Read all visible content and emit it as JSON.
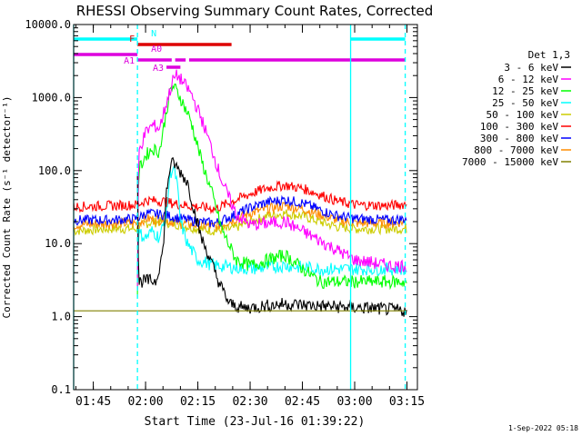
{
  "chart_data": {
    "type": "line",
    "title": "RHESSI Observing Summary Count Rates, Corrected",
    "xlabel": "Start Time (23-Jul-16 01:39:22)",
    "ylabel": "Corrected Count Rate (s⁻¹ detector⁻¹)",
    "footer": "1-Sep-2022 05:18",
    "y_scale": "log",
    "ylim": [
      0.1,
      10000
    ],
    "y_ticks": [
      0.1,
      1.0,
      10.0,
      100.0,
      1000.0,
      10000.0
    ],
    "y_tick_labels": [
      "0.1",
      "1.0",
      "10.0",
      "100.0",
      "1000.0",
      "10000.0"
    ],
    "xlim": [
      "01:39:22",
      "03:18:00"
    ],
    "x_ticks": [
      "01:45",
      "02:00",
      "02:15",
      "02:30",
      "02:45",
      "03:00",
      "03:15"
    ],
    "legend": {
      "title": "Det 1,3",
      "placement": "right",
      "entries": [
        "3 - 6 keV",
        "6 - 12 keV",
        "12 - 25 keV",
        "25 - 50 keV",
        "50 - 100 keV",
        "100 - 300 keV",
        "300 - 800 keV",
        "800 - 7000 keV",
        "7000 - 15000 keV"
      ]
    },
    "series": [
      {
        "name": "3 - 6 keV",
        "color": "#000000",
        "points": [
          [
            "01:57:40",
            100
          ],
          [
            "01:58:00",
            3.0
          ],
          [
            "02:00:00",
            3.1
          ],
          [
            "02:03:00",
            3.1
          ],
          [
            "02:05:00",
            8
          ],
          [
            "02:06:00",
            50
          ],
          [
            "02:07:00",
            110
          ],
          [
            "02:08:00",
            130
          ],
          [
            "02:09:00",
            110
          ],
          [
            "02:10:00",
            95
          ],
          [
            "02:12:00",
            70
          ],
          [
            "02:14:00",
            28
          ],
          [
            "02:16:00",
            12
          ],
          [
            "02:18:00",
            7
          ],
          [
            "02:21:00",
            3
          ],
          [
            "02:24:00",
            1.5
          ],
          [
            "02:28:00",
            1.3
          ],
          [
            "02:40:00",
            1.5
          ],
          [
            "02:50:00",
            1.4
          ],
          [
            "03:05:00",
            1.3
          ],
          [
            "03:15:00",
            1.2
          ]
        ]
      },
      {
        "name": "6 - 12 keV",
        "color": "#ff00ff",
        "points": [
          [
            "01:57:40",
            2
          ],
          [
            "01:58:00",
            180
          ],
          [
            "02:00:00",
            330
          ],
          [
            "02:02:00",
            420
          ],
          [
            "02:04:00",
            380
          ],
          [
            "02:06:00",
            850
          ],
          [
            "02:08:00",
            1800
          ],
          [
            "02:09:00",
            2000
          ],
          [
            "02:10:00",
            1800
          ],
          [
            "02:13:00",
            1150
          ],
          [
            "02:16:00",
            520
          ],
          [
            "02:19:00",
            200
          ],
          [
            "02:22:00",
            70
          ],
          [
            "02:26:00",
            25
          ],
          [
            "02:30:00",
            18
          ],
          [
            "02:40:00",
            20
          ],
          [
            "02:50:00",
            11
          ],
          [
            "03:00:00",
            6
          ],
          [
            "03:10:00",
            5
          ],
          [
            "03:15:00",
            5
          ]
        ]
      },
      {
        "name": "12 - 25 keV",
        "color": "#00ff00",
        "points": [
          [
            "01:57:40",
            2
          ],
          [
            "01:58:00",
            100
          ],
          [
            "02:00:00",
            160
          ],
          [
            "02:02:00",
            200
          ],
          [
            "02:04:00",
            180
          ],
          [
            "02:06:00",
            650
          ],
          [
            "02:07:00",
            1200
          ],
          [
            "02:08:00",
            1450
          ],
          [
            "02:10:00",
            1000
          ],
          [
            "02:13:00",
            480
          ],
          [
            "02:16:00",
            140
          ],
          [
            "02:19:00",
            50
          ],
          [
            "02:22:00",
            15
          ],
          [
            "02:26:00",
            6
          ],
          [
            "02:30:00",
            5
          ],
          [
            "02:40:00",
            7
          ],
          [
            "02:50:00",
            3
          ],
          [
            "03:00:00",
            3
          ],
          [
            "03:15:00",
            3
          ]
        ]
      },
      {
        "name": "25 - 50 keV",
        "color": "#00ffff",
        "points": [
          [
            "01:57:40",
            4
          ],
          [
            "01:58:00",
            14
          ],
          [
            "02:00:00",
            12
          ],
          [
            "02:02:00",
            15
          ],
          [
            "02:04:00",
            12
          ],
          [
            "02:06:00",
            25
          ],
          [
            "02:07:00",
            90
          ],
          [
            "02:08:00",
            110
          ],
          [
            "02:09:00",
            70
          ],
          [
            "02:10:00",
            20
          ],
          [
            "02:12:00",
            10
          ],
          [
            "02:15:00",
            6
          ],
          [
            "02:20:00",
            5
          ],
          [
            "02:30:00",
            4.5
          ],
          [
            "02:40:00",
            5
          ],
          [
            "02:50:00",
            4.5
          ],
          [
            "03:00:00",
            4.5
          ],
          [
            "03:15:00",
            4.5
          ]
        ]
      },
      {
        "name": "50 - 100 keV",
        "color": "#cccc00",
        "points": [
          [
            "01:39:22",
            15
          ],
          [
            "01:50:00",
            16
          ],
          [
            "01:57:40",
            16
          ],
          [
            "02:00:00",
            19
          ],
          [
            "02:05:00",
            20
          ],
          [
            "02:10:00",
            18
          ],
          [
            "02:15:00",
            16
          ],
          [
            "02:20:00",
            15
          ],
          [
            "02:25:00",
            16
          ],
          [
            "02:30:00",
            20
          ],
          [
            "02:35:00",
            24
          ],
          [
            "02:40:00",
            26
          ],
          [
            "02:45:00",
            24
          ],
          [
            "02:50:00",
            20
          ],
          [
            "02:55:00",
            17
          ],
          [
            "03:00:00",
            16
          ],
          [
            "03:10:00",
            16
          ],
          [
            "03:15:00",
            16
          ]
        ]
      },
      {
        "name": "100 - 300 keV",
        "color": "#ff0000",
        "points": [
          [
            "01:39:22",
            32
          ],
          [
            "01:50:00",
            33
          ],
          [
            "01:57:40",
            34
          ],
          [
            "02:00:00",
            39
          ],
          [
            "02:05:00",
            38
          ],
          [
            "02:10:00",
            34
          ],
          [
            "02:15:00",
            32
          ],
          [
            "02:20:00",
            30
          ],
          [
            "02:25:00",
            38
          ],
          [
            "02:30:00",
            48
          ],
          [
            "02:35:00",
            58
          ],
          [
            "02:40:00",
            63
          ],
          [
            "02:45:00",
            57
          ],
          [
            "02:50:00",
            47
          ],
          [
            "02:55:00",
            38
          ],
          [
            "03:00:00",
            34
          ],
          [
            "03:10:00",
            33
          ],
          [
            "03:15:00",
            35
          ]
        ]
      },
      {
        "name": "300 - 800 keV",
        "color": "#0000ff",
        "points": [
          [
            "01:39:22",
            21
          ],
          [
            "01:50:00",
            21
          ],
          [
            "01:57:40",
            22
          ],
          [
            "02:00:00",
            26
          ],
          [
            "02:05:00",
            25
          ],
          [
            "02:10:00",
            22
          ],
          [
            "02:15:00",
            20
          ],
          [
            "02:20:00",
            19
          ],
          [
            "02:25:00",
            24
          ],
          [
            "02:30:00",
            31
          ],
          [
            "02:35:00",
            37
          ],
          [
            "02:40:00",
            40
          ],
          [
            "02:45:00",
            36
          ],
          [
            "02:50:00",
            29
          ],
          [
            "02:55:00",
            24
          ],
          [
            "03:00:00",
            22
          ],
          [
            "03:10:00",
            21
          ],
          [
            "03:15:00",
            22
          ]
        ]
      },
      {
        "name": "800 - 7000 keV",
        "color": "#ff8c00",
        "points": [
          [
            "01:39:22",
            18
          ],
          [
            "01:50:00",
            19
          ],
          [
            "01:57:40",
            19
          ],
          [
            "02:00:00",
            22
          ],
          [
            "02:05:00",
            21
          ],
          [
            "02:10:00",
            19
          ],
          [
            "02:15:00",
            18
          ],
          [
            "02:20:00",
            17
          ],
          [
            "02:25:00",
            21
          ],
          [
            "02:30:00",
            26
          ],
          [
            "02:35:00",
            30
          ],
          [
            "02:40:00",
            33
          ],
          [
            "02:45:00",
            30
          ],
          [
            "02:50:00",
            25
          ],
          [
            "02:55:00",
            21
          ],
          [
            "03:00:00",
            19
          ],
          [
            "03:10:00",
            19
          ],
          [
            "03:15:00",
            20
          ]
        ]
      },
      {
        "name": "7000 - 15000 keV",
        "color": "#808000",
        "points": [
          [
            "01:39:22",
            1.2
          ],
          [
            "01:50:00",
            1.2
          ],
          [
            "01:57:40",
            1.2
          ],
          [
            "02:00:00",
            1.2
          ],
          [
            "02:10:00",
            1.2
          ],
          [
            "02:20:00",
            1.2
          ],
          [
            "02:30:00",
            1.2
          ],
          [
            "02:40:00",
            1.2
          ],
          [
            "02:50:00",
            1.2
          ],
          [
            "03:00:00",
            1.2
          ],
          [
            "03:15:00",
            1.2
          ]
        ]
      }
    ],
    "vertical_lines": [
      {
        "time": "01:39:22",
        "color": "#00ffff",
        "style": "solid"
      },
      {
        "time": "01:57:40",
        "color": "#00ffff",
        "style": "dashed"
      },
      {
        "time": "02:58:50",
        "color": "#00ffff",
        "style": "solid"
      },
      {
        "time": "03:14:30",
        "color": "#00ffff",
        "style": "dashed"
      }
    ],
    "flag_bars": [
      {
        "label": "N",
        "color": "#00ffff",
        "segments": [
          [
            "01:39:22",
            "01:57:40"
          ],
          [
            "02:58:50",
            "03:14:30"
          ]
        ]
      },
      {
        "label": "F",
        "color": "#dd0000",
        "segments": [
          [
            "01:57:40",
            "02:24:40"
          ]
        ]
      },
      {
        "label": "A0",
        "color": "#dd00dd",
        "segments": [
          [
            "01:39:22",
            "01:57:40"
          ]
        ]
      },
      {
        "label": "A1",
        "color": "#dd00dd",
        "segments": [
          [
            "01:57:40",
            "02:07:30"
          ],
          [
            "02:08:30",
            "02:11:30"
          ],
          [
            "02:12:30",
            "03:14:30"
          ]
        ]
      },
      {
        "label": "A3",
        "color": "#dd00dd",
        "segments": [
          [
            "02:06:00",
            "02:10:00"
          ]
        ]
      }
    ]
  }
}
